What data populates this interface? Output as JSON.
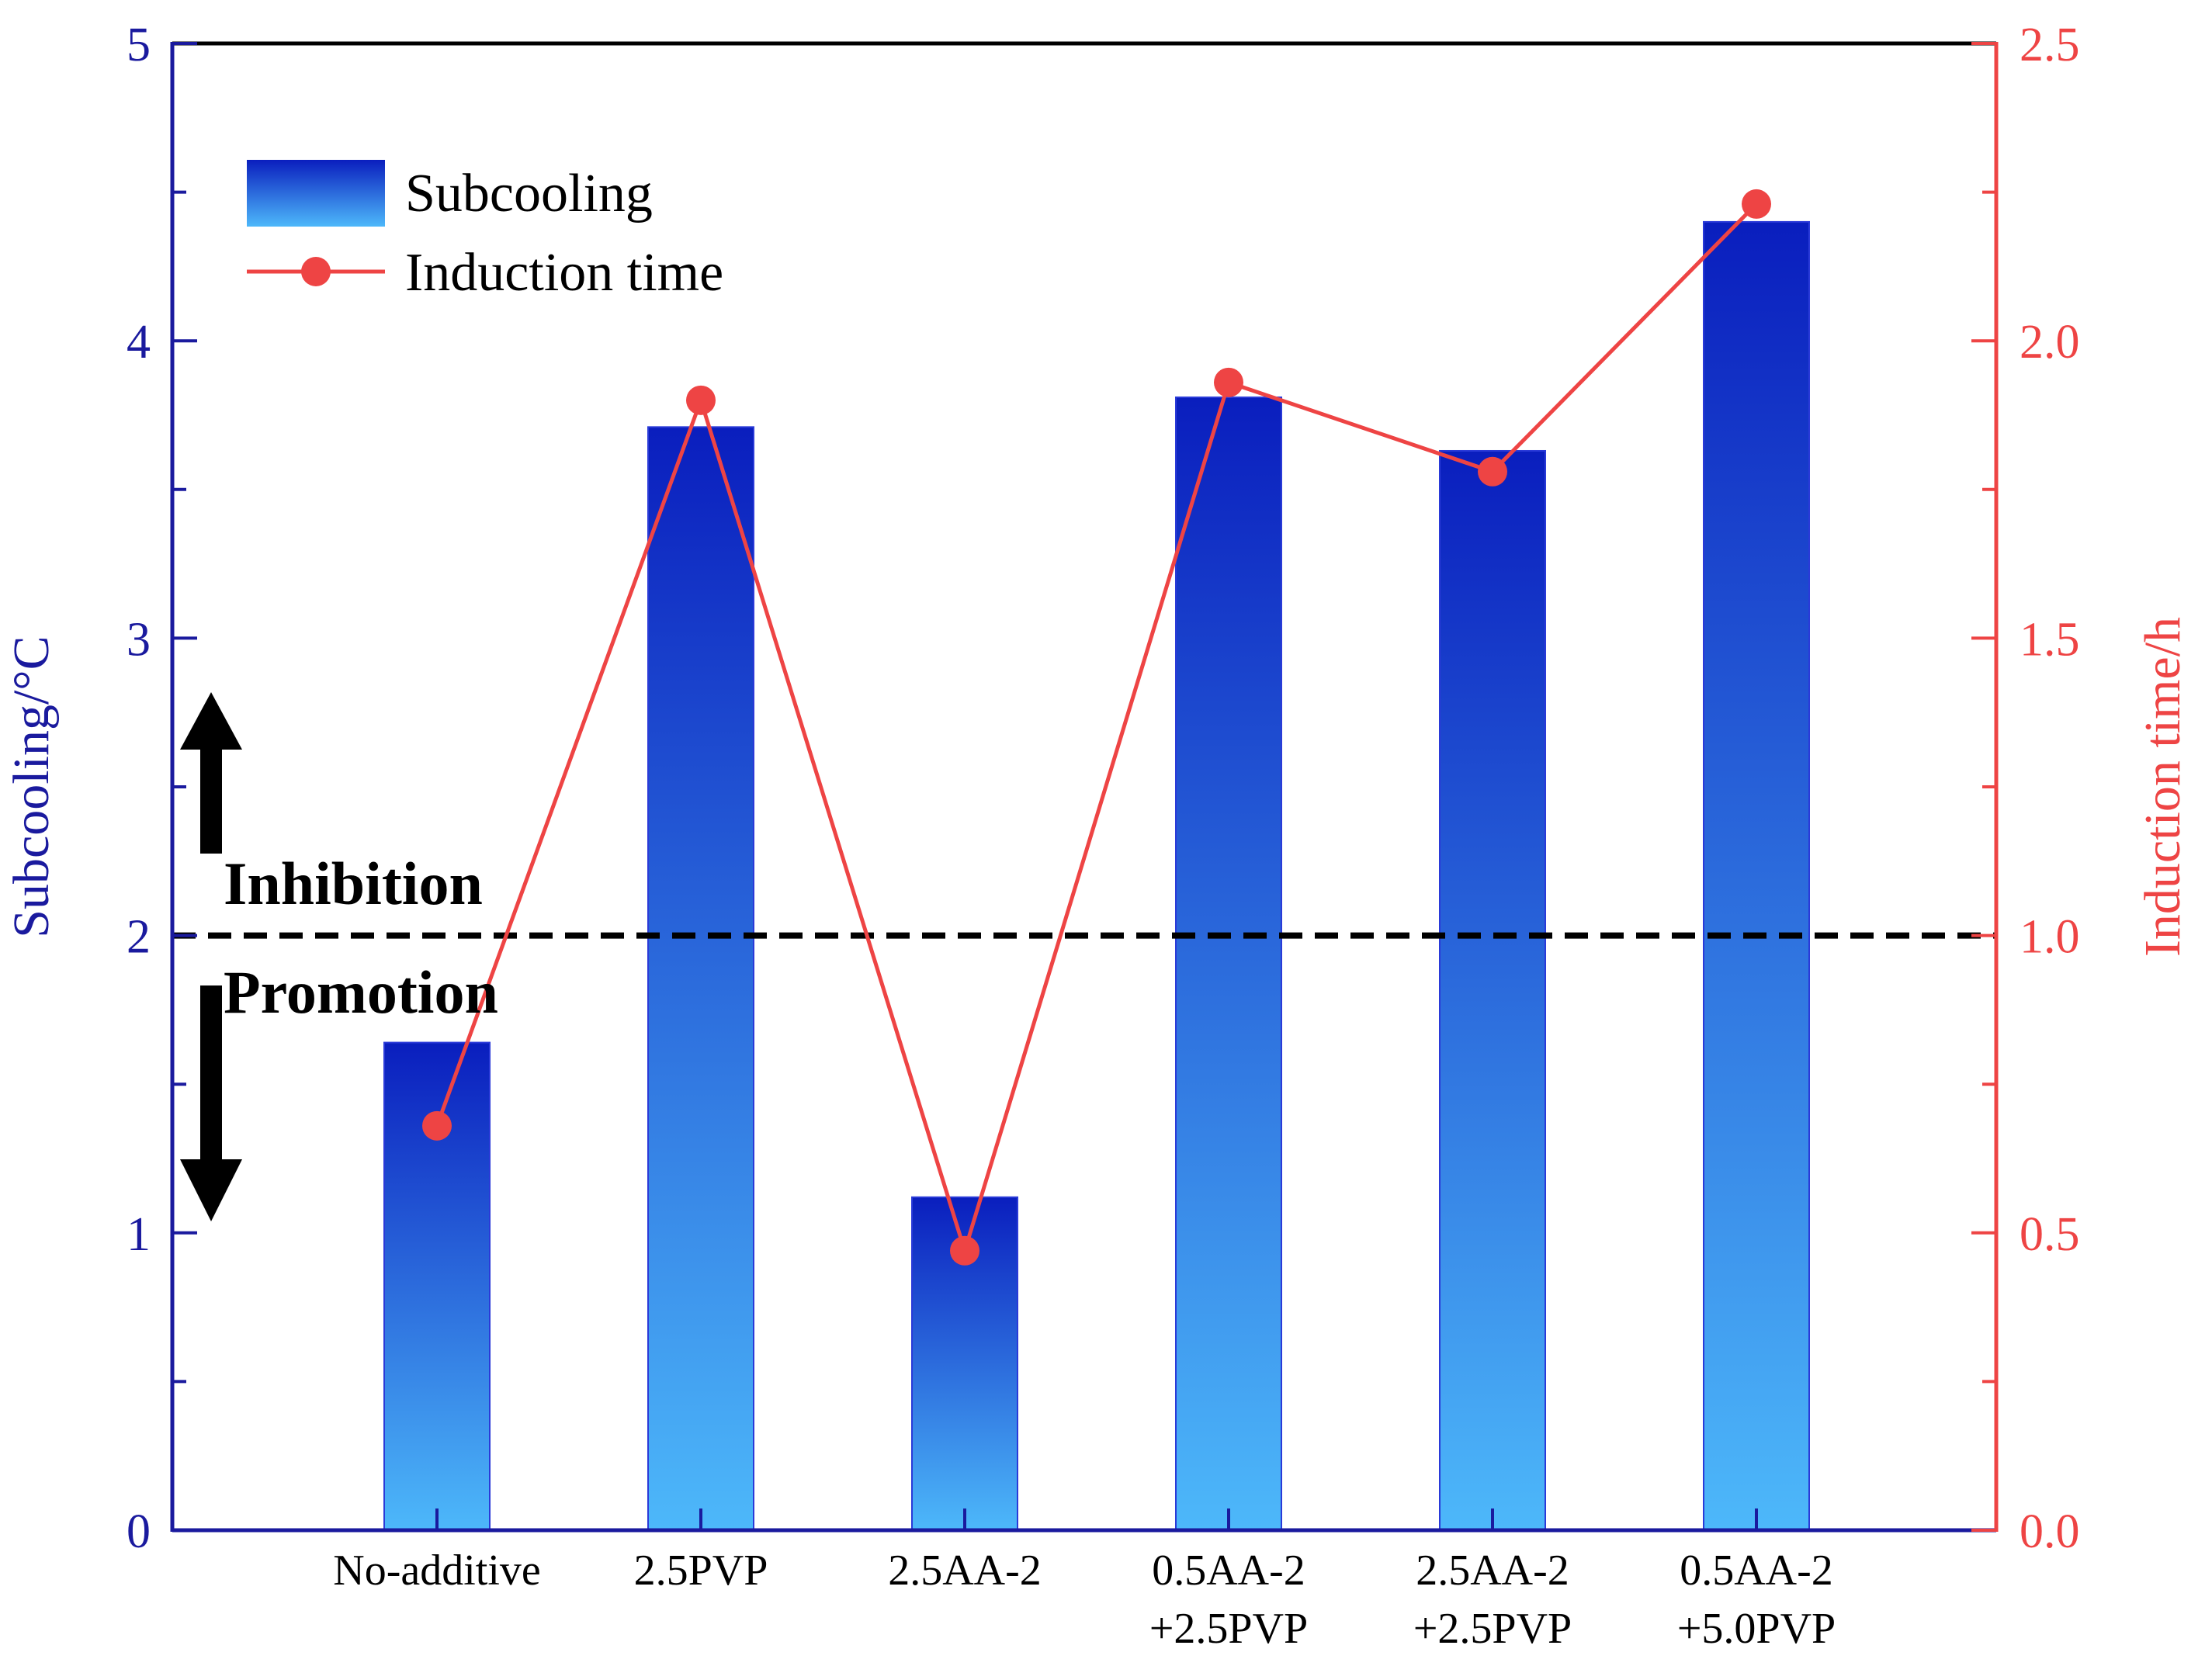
{
  "colors": {
    "left_axis": "#1a1a9e",
    "right_axis": "#ee4444",
    "bar_top": "#0a1ebe",
    "bar_bottom": "#4db8fa",
    "bar_stroke": "#2a3ad8",
    "line": "#ee4444",
    "dashed": "#000000"
  },
  "chart_data": {
    "type": "bar",
    "categories": [
      [
        "No-additive"
      ],
      [
        "2.5PVP"
      ],
      [
        "2.5AA-2"
      ],
      [
        "0.5AA-2",
        "+2.5PVP"
      ],
      [
        "2.5AA-2",
        "+2.5PVP"
      ],
      [
        "0.5AA-2",
        "+5.0PVP"
      ]
    ],
    "series": [
      {
        "name": "Subcooling",
        "type": "bar",
        "axis": "left",
        "values": [
          1.64,
          3.71,
          1.12,
          3.81,
          3.63,
          4.4
        ]
      },
      {
        "name": "Induction time",
        "type": "line",
        "axis": "right",
        "values": [
          0.68,
          1.9,
          0.47,
          1.93,
          1.78,
          2.23
        ]
      }
    ],
    "left_axis": {
      "label": "Subcooling/°C",
      "min": 0,
      "max": 5,
      "ticks": [
        0,
        1,
        2,
        3,
        4,
        5
      ],
      "tick_labels": [
        "0",
        "1",
        "2",
        "3",
        "4",
        "5"
      ]
    },
    "right_axis": {
      "label": "Induction time/h",
      "min": 0,
      "max": 2.5,
      "ticks": [
        0,
        0.5,
        1,
        1.5,
        2,
        2.5
      ],
      "tick_labels": [
        "0.0",
        "0.5",
        "1.0",
        "1.5",
        "2.0",
        "2.5"
      ]
    },
    "reference_line": {
      "value": 2,
      "axis": "left",
      "style": "dashed"
    },
    "annotations": {
      "upper": "Inhibition",
      "lower": "Promotion"
    },
    "legend": {
      "position": "top-left",
      "entries": [
        "Subcooling",
        "Induction time"
      ]
    }
  }
}
